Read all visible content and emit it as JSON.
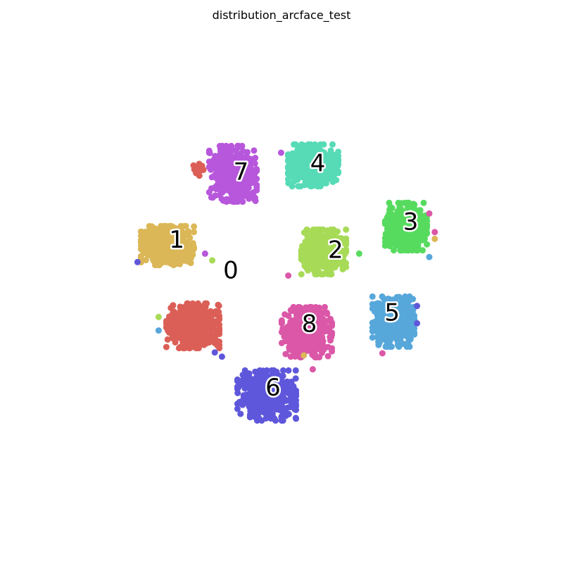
{
  "chart_data": {
    "type": "scatter",
    "title": "distribution_arcface_test",
    "xlabel": "",
    "ylabel": "",
    "axes_visible": false,
    "grid": false,
    "legend": "none",
    "xlim": [
      0,
      100
    ],
    "ylim": [
      0,
      100
    ],
    "clusters": [
      {
        "label": "0",
        "color": "#db5f57",
        "center": [
          30.5,
          76.2
        ],
        "spread": [
          1.2,
          1.0
        ],
        "count": 12
      },
      {
        "label": "0",
        "color": "#db5f57",
        "center": [
          29.0,
          39.5
        ],
        "spread": [
          3.8,
          3.2
        ],
        "count": 520
      },
      {
        "label": "1",
        "color": "#dbb757",
        "center": [
          23.0,
          58.5
        ],
        "spread": [
          3.8,
          2.8
        ],
        "count": 520
      },
      {
        "label": "2",
        "color": "#a7db57",
        "center": [
          60.0,
          57.0
        ],
        "spread": [
          3.2,
          3.2
        ],
        "count": 520
      },
      {
        "label": "3",
        "color": "#57db5f",
        "center": [
          79.5,
          63.0
        ],
        "spread": [
          3.0,
          3.4
        ],
        "count": 520
      },
      {
        "label": "4",
        "color": "#57dbb7",
        "center": [
          57.5,
          77.5
        ],
        "spread": [
          3.6,
          3.0
        ],
        "count": 520
      },
      {
        "label": "5",
        "color": "#57a7db",
        "center": [
          76.5,
          40.5
        ],
        "spread": [
          3.0,
          3.6
        ],
        "count": 520
      },
      {
        "label": "6",
        "color": "#5f57db",
        "center": [
          46.5,
          23.0
        ],
        "spread": [
          4.2,
          3.6
        ],
        "count": 520
      },
      {
        "label": "7",
        "color": "#b757db",
        "center": [
          38.5,
          75.5
        ],
        "spread": [
          3.4,
          4.0
        ],
        "count": 520
      },
      {
        "label": "8",
        "color": "#db57a7",
        "center": [
          56.0,
          38.0
        ],
        "spread": [
          3.6,
          3.6
        ],
        "count": 520
      }
    ],
    "cluster_labels": [
      {
        "text": "0",
        "x": 38.0,
        "y": 52.6
      },
      {
        "text": "1",
        "x": 25.2,
        "y": 59.8
      },
      {
        "text": "2",
        "x": 62.8,
        "y": 57.4
      },
      {
        "text": "3",
        "x": 80.6,
        "y": 64.1
      },
      {
        "text": "4",
        "x": 58.6,
        "y": 77.9
      },
      {
        "text": "5",
        "x": 76.2,
        "y": 42.6
      },
      {
        "text": "6",
        "x": 48.0,
        "y": 24.8
      },
      {
        "text": "7",
        "x": 40.4,
        "y": 75.9
      },
      {
        "text": "8",
        "x": 56.6,
        "y": 39.9
      }
    ],
    "outliers": [
      {
        "x": 15.9,
        "y": 54.6,
        "color": "#5f57db"
      },
      {
        "x": 31.9,
        "y": 56.6,
        "color": "#b757db"
      },
      {
        "x": 33.6,
        "y": 55.0,
        "color": "#a7db57"
      },
      {
        "x": 49.9,
        "y": 80.5,
        "color": "#b757db"
      },
      {
        "x": 51.6,
        "y": 51.4,
        "color": "#db57a7"
      },
      {
        "x": 68.4,
        "y": 56.6,
        "color": "#57db5f"
      },
      {
        "x": 85.0,
        "y": 66.1,
        "color": "#db57a7"
      },
      {
        "x": 86.3,
        "y": 61.7,
        "color": "#db57a7"
      },
      {
        "x": 86.3,
        "y": 60.1,
        "color": "#dbb757"
      },
      {
        "x": 85.0,
        "y": 55.8,
        "color": "#57a7db"
      },
      {
        "x": 82.1,
        "y": 44.2,
        "color": "#5f57db"
      },
      {
        "x": 82.1,
        "y": 40.1,
        "color": "#5f57db"
      },
      {
        "x": 73.9,
        "y": 33.0,
        "color": "#db57a7"
      },
      {
        "x": 20.9,
        "y": 41.6,
        "color": "#a7db57"
      },
      {
        "x": 20.9,
        "y": 38.4,
        "color": "#57a7db"
      },
      {
        "x": 34.2,
        "y": 33.2,
        "color": "#5f57db"
      },
      {
        "x": 35.9,
        "y": 32.2,
        "color": "#5f57db"
      },
      {
        "x": 55.3,
        "y": 32.5,
        "color": "#dbb757"
      },
      {
        "x": 57.4,
        "y": 29.2,
        "color": "#db57a7"
      }
    ]
  }
}
